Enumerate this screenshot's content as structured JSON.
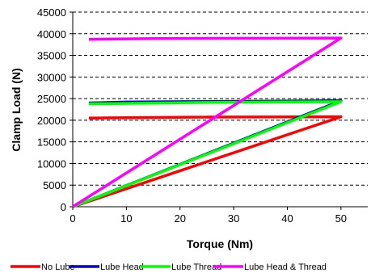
{
  "chart_data": {
    "type": "line",
    "title": "",
    "xlabel": "Torque (Nm)",
    "ylabel": "Clamp Load (N)",
    "xlim": [
      0,
      55
    ],
    "ylim": [
      0,
      45000
    ],
    "xticks": [
      0,
      10,
      20,
      30,
      40,
      50
    ],
    "yticks": [
      0,
      5000,
      10000,
      15000,
      20000,
      25000,
      30000,
      35000,
      40000,
      45000
    ],
    "grid": "horizontal dashed",
    "legend_position": "bottom",
    "series": [
      {
        "name": "No Lube",
        "color": "#ff0000",
        "points": [
          [
            0,
            0
          ],
          [
            50,
            20800
          ],
          [
            22,
            20700
          ],
          [
            3,
            20500
          ]
        ]
      },
      {
        "name": "Lube Head",
        "color": "#0000cc",
        "points": [
          [
            0,
            0
          ],
          [
            50,
            24500
          ],
          [
            10,
            24200
          ],
          [
            3,
            24000
          ]
        ]
      },
      {
        "name": "Lube Thread",
        "color": "#00ff00",
        "points": [
          [
            0,
            0
          ],
          [
            50,
            24300
          ],
          [
            25,
            24100
          ],
          [
            3,
            23800
          ]
        ]
      },
      {
        "name": "Lube Head & Thread",
        "color": "#ff00ff",
        "points": [
          [
            0,
            0
          ],
          [
            50,
            39000
          ],
          [
            15,
            38900
          ],
          [
            3,
            38700
          ]
        ]
      }
    ]
  }
}
